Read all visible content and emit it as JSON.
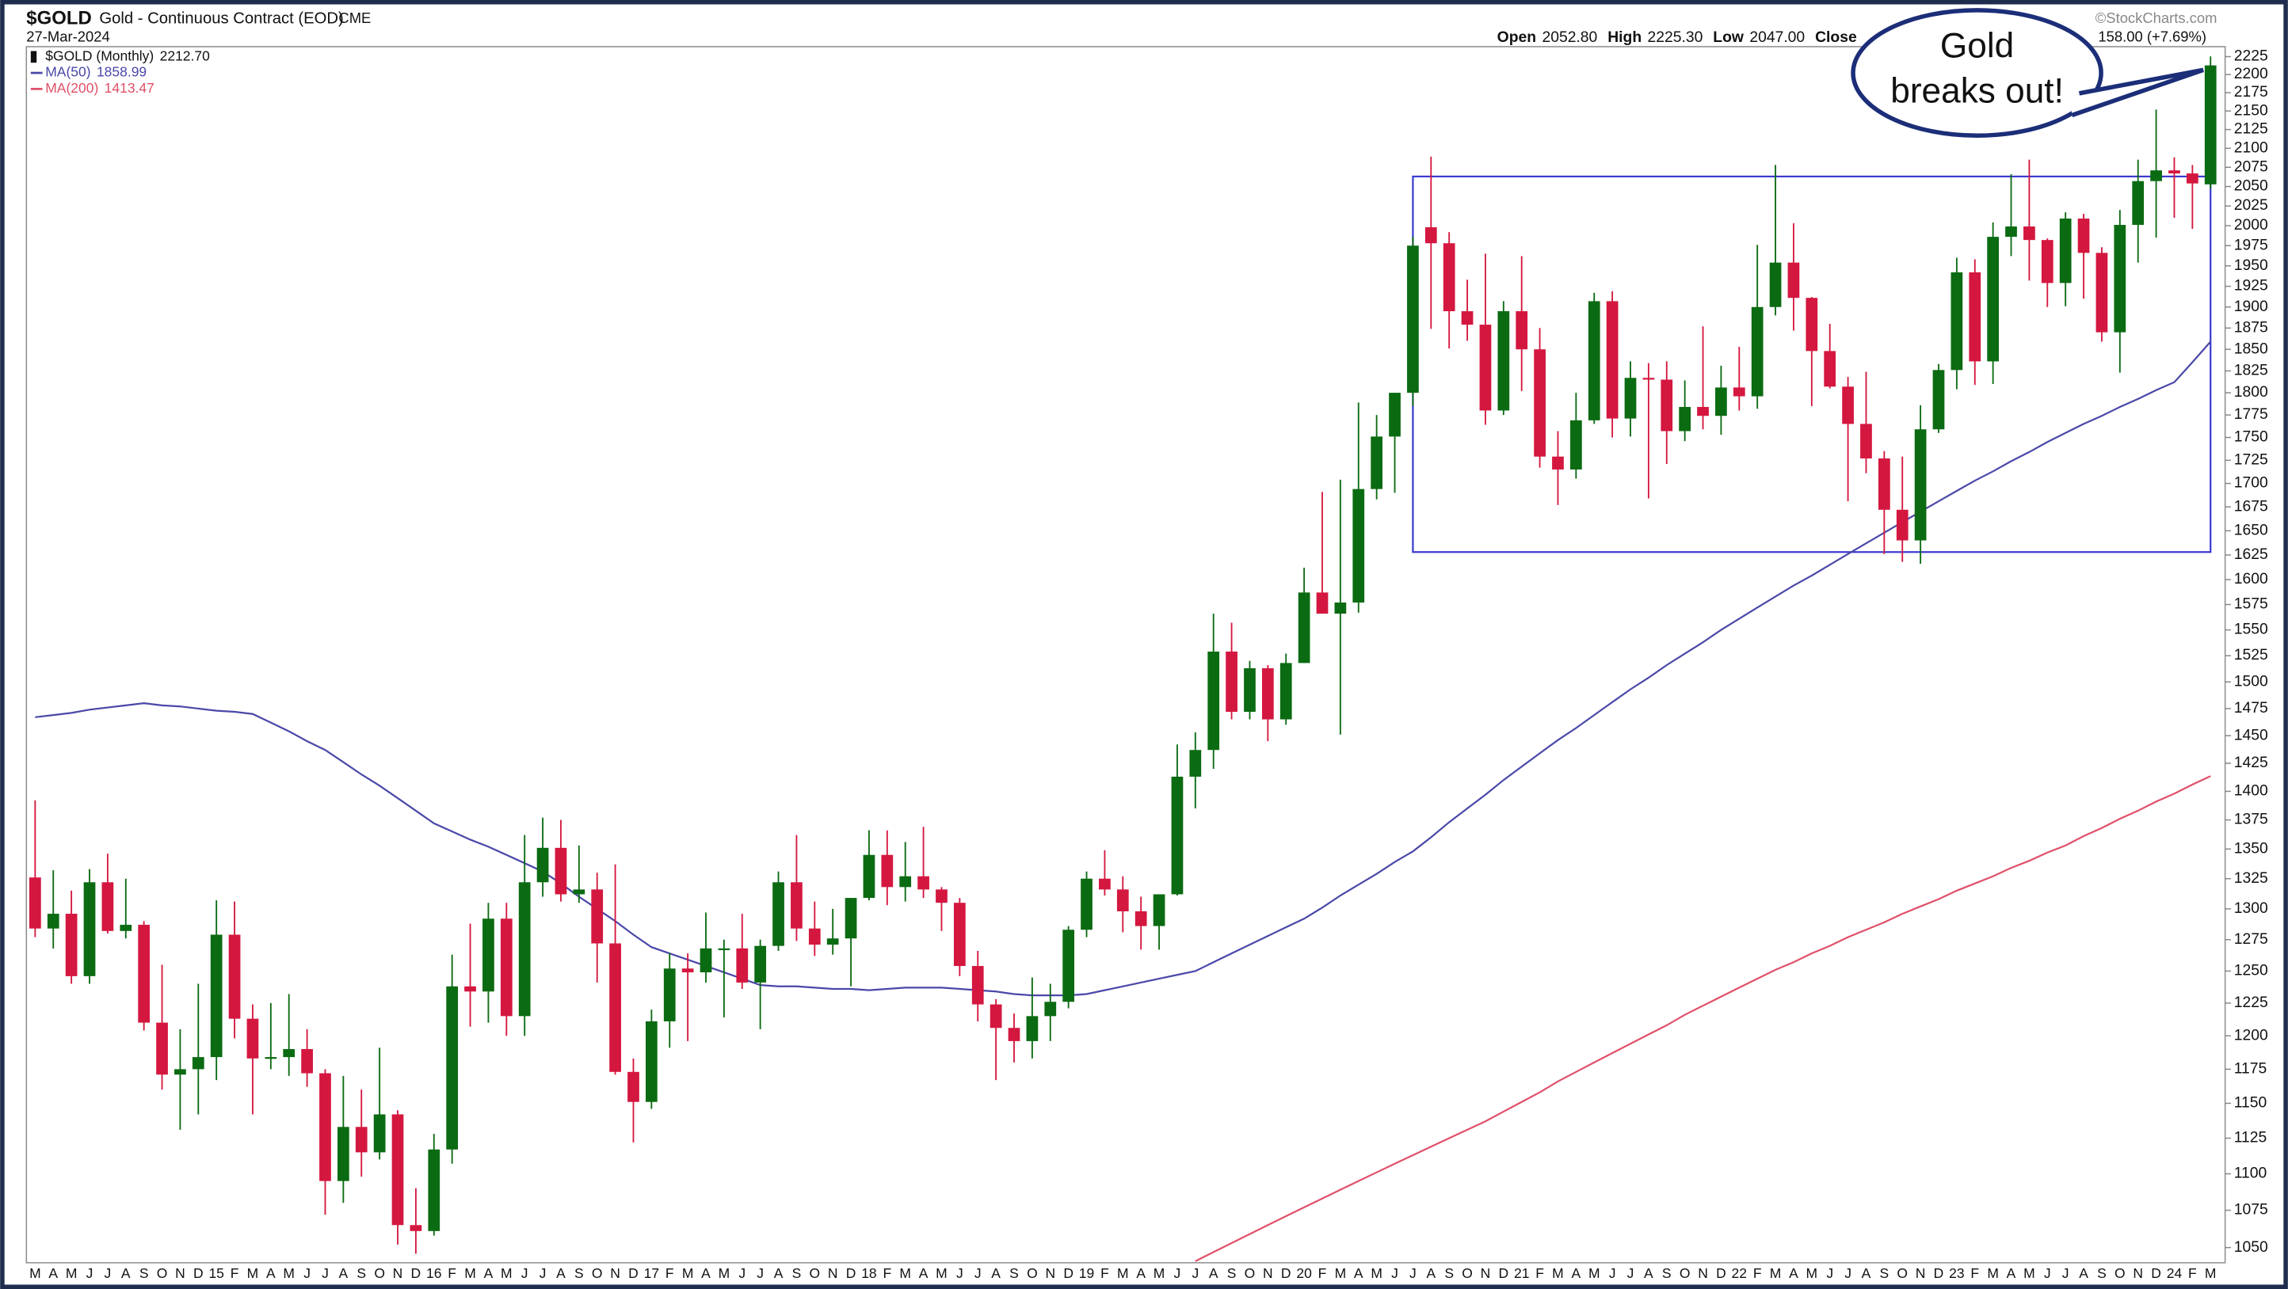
{
  "chart_data": {
    "type": "candlestick",
    "title": "$GOLD",
    "subtitle": "Gold - Continuous Contract (EOD)",
    "exchange": "CME",
    "date": "27-Mar-2024",
    "quote": [
      {
        "label": "Open",
        "value": "2052.80"
      },
      {
        "label": "High",
        "value": "2225.30"
      },
      {
        "label": "Low",
        "value": "2047.00"
      },
      {
        "label": "Close"
      }
    ],
    "change": "158.00 (+7.69%)",
    "source": "©StockCharts.com",
    "categories": [
      "M",
      "A",
      "M",
      "J",
      "J",
      "A",
      "S",
      "O",
      "N",
      "D",
      "15",
      "F",
      "M",
      "A",
      "M",
      "J",
      "J",
      "A",
      "S",
      "O",
      "N",
      "D",
      "16",
      "F",
      "M",
      "A",
      "M",
      "J",
      "J",
      "A",
      "S",
      "O",
      "N",
      "D",
      "17",
      "F",
      "M",
      "A",
      "M",
      "J",
      "J",
      "A",
      "S",
      "O",
      "N",
      "D",
      "18",
      "F",
      "M",
      "A",
      "M",
      "J",
      "J",
      "A",
      "S",
      "O",
      "N",
      "D",
      "19",
      "F",
      "M",
      "A",
      "M",
      "J",
      "J",
      "A",
      "S",
      "O",
      "N",
      "D",
      "20",
      "F",
      "M",
      "A",
      "M",
      "J",
      "J",
      "A",
      "S",
      "O",
      "N",
      "D",
      "21",
      "F",
      "M",
      "A",
      "M",
      "J",
      "J",
      "A",
      "S",
      "O",
      "N",
      "D",
      "22",
      "F",
      "M",
      "A",
      "M",
      "J",
      "J",
      "A",
      "S",
      "O",
      "N",
      "D",
      "23",
      "F",
      "M",
      "A",
      "M",
      "J",
      "J",
      "A",
      "S",
      "O",
      "N",
      "D",
      "24",
      "F",
      "M"
    ],
    "candles": {
      "name": "$GOLD (Monthly)",
      "last_label": "2212.70",
      "up_color": "#0b6b12",
      "down_color": "#d4173f",
      "open": [
        1326,
        1284,
        1296,
        1246,
        1322,
        1282,
        1287,
        1210,
        1171,
        1175,
        1184,
        1279,
        1213,
        1183,
        1184,
        1190,
        1172,
        1095,
        1133,
        1115,
        1142,
        1065,
        1061,
        1117,
        1238,
        1234,
        1292,
        1215,
        1322,
        1351,
        1312,
        1316,
        1272,
        1173,
        1151,
        1211,
        1252,
        1249,
        1268,
        1268,
        1241,
        1270,
        1322,
        1284,
        1271,
        1276,
        1309,
        1345,
        1318,
        1327,
        1316,
        1305,
        1254,
        1224,
        1206,
        1196,
        1215,
        1226,
        1283,
        1325,
        1316,
        1298,
        1286,
        1312,
        1413,
        1437,
        1529,
        1472,
        1513,
        1465,
        1518,
        1587,
        1566,
        1577,
        1694,
        1751,
        1800,
        1998,
        1978,
        1895,
        1879,
        1780,
        1895,
        1850,
        1729,
        1715,
        1769,
        1907,
        1771,
        1817,
        1815,
        1757,
        1784,
        1774,
        1806,
        1796,
        1900,
        1954,
        1911,
        1848,
        1807,
        1765,
        1727,
        1672,
        1640,
        1759,
        1826,
        1942,
        1836,
        1986,
        1999,
        1982,
        1929,
        2009,
        1966,
        1870,
        2001,
        2057,
        2071,
        2067,
        2052.8
      ],
      "high": [
        1392,
        1332,
        1315,
        1333,
        1346,
        1325,
        1290,
        1255,
        1205,
        1240,
        1307,
        1306,
        1224,
        1225,
        1232,
        1205,
        1175,
        1170,
        1160,
        1191,
        1145,
        1090,
        1128,
        1263,
        1288,
        1305,
        1305,
        1362,
        1377,
        1375,
        1353,
        1330,
        1337,
        1183,
        1220,
        1264,
        1264,
        1297,
        1275,
        1296,
        1275,
        1331,
        1362,
        1306,
        1300,
        1309,
        1366,
        1366,
        1356,
        1369,
        1318,
        1309,
        1266,
        1228,
        1217,
        1245,
        1240,
        1286,
        1331,
        1349,
        1327,
        1310,
        1312,
        1442,
        1453,
        1566,
        1557,
        1520,
        1516,
        1527,
        1612,
        1691,
        1704,
        1789,
        1775,
        1800,
        1986,
        2089,
        1992,
        1933,
        1965,
        1907,
        1962,
        1875,
        1757,
        1800,
        1917,
        1919,
        1836,
        1834,
        1836,
        1814,
        1877,
        1831,
        1853,
        1976,
        2078,
        2003,
        1912,
        1880,
        1818,
        1824,
        1735,
        1729,
        1786,
        1833,
        1960,
        1958,
        2004,
        2066,
        2085,
        1984,
        2017,
        2015,
        1973,
        2020,
        2085,
        2152,
        2088,
        2078,
        2225.3
      ],
      "low": [
        1277,
        1268,
        1240,
        1240,
        1280,
        1276,
        1204,
        1160,
        1131,
        1142,
        1167,
        1198,
        1142,
        1175,
        1170,
        1162,
        1072,
        1080,
        1098,
        1110,
        1052,
        1046,
        1058,
        1107,
        1207,
        1210,
        1200,
        1200,
        1310,
        1306,
        1305,
        1241,
        1171,
        1122,
        1146,
        1191,
        1196,
        1241,
        1214,
        1236,
        1205,
        1266,
        1274,
        1262,
        1263,
        1238,
        1307,
        1303,
        1306,
        1309,
        1282,
        1246,
        1211,
        1167,
        1180,
        1183,
        1196,
        1221,
        1277,
        1311,
        1281,
        1267,
        1267,
        1311,
        1385,
        1420,
        1465,
        1465,
        1445,
        1460,
        1518,
        1566,
        1451,
        1567,
        1683,
        1690,
        1785,
        1874,
        1851,
        1860,
        1764,
        1775,
        1802,
        1717,
        1677,
        1705,
        1765,
        1750,
        1751,
        1684,
        1721,
        1746,
        1759,
        1753,
        1780,
        1782,
        1890,
        1872,
        1785,
        1805,
        1681,
        1711,
        1626,
        1618,
        1616,
        1755,
        1804,
        1809,
        1810,
        1962,
        1932,
        1900,
        1901,
        1910,
        1859,
        1823,
        1954,
        1985,
        2010,
        1996,
        2047
      ],
      "close": [
        1284,
        1296,
        1246,
        1322,
        1282,
        1287,
        1210,
        1171,
        1175,
        1184,
        1279,
        1213,
        1183,
        1184,
        1190,
        1172,
        1095,
        1133,
        1115,
        1142,
        1065,
        1061,
        1117,
        1238,
        1234,
        1292,
        1215,
        1322,
        1351,
        1312,
        1316,
        1272,
        1173,
        1151,
        1211,
        1252,
        1249,
        1268,
        1268,
        1241,
        1270,
        1322,
        1284,
        1271,
        1276,
        1309,
        1345,
        1318,
        1327,
        1316,
        1305,
        1254,
        1224,
        1206,
        1196,
        1215,
        1226,
        1283,
        1325,
        1316,
        1298,
        1286,
        1312,
        1413,
        1437,
        1529,
        1472,
        1513,
        1465,
        1518,
        1587,
        1566,
        1577,
        1694,
        1751,
        1800,
        1975,
        1978,
        1895,
        1879,
        1780,
        1895,
        1850,
        1729,
        1715,
        1769,
        1907,
        1771,
        1817,
        1815,
        1757,
        1784,
        1774,
        1806,
        1796,
        1900,
        1954,
        1911,
        1848,
        1807,
        1765,
        1727,
        1672,
        1640,
        1759,
        1826,
        1942,
        1836,
        1986,
        1999,
        1982,
        1929,
        2009,
        1966,
        1870,
        2001,
        2057,
        2071,
        2067,
        2054,
        2212.7
      ]
    },
    "series": [
      {
        "name": "MA(50)",
        "last_label": "1858.99",
        "color": "#4a48a8",
        "values": [
          1467,
          1469,
          1471,
          1474,
          1476,
          1478,
          1480,
          1478,
          1477,
          1475,
          1473,
          1472,
          1470,
          1462,
          1454,
          1445,
          1437,
          1426,
          1415,
          1405,
          1394,
          1383,
          1372,
          1365,
          1358,
          1352,
          1345,
          1338,
          1331,
          1321,
          1310,
          1300,
          1290,
          1279,
          1269,
          1264,
          1259,
          1254,
          1249,
          1244,
          1239,
          1238,
          1238,
          1237,
          1236,
          1236,
          1235,
          1236,
          1237,
          1237,
          1237,
          1236,
          1235,
          1234,
          1232,
          1231,
          1231,
          1231,
          1232,
          1235,
          1238,
          1241,
          1244,
          1247,
          1250,
          1257,
          1264,
          1271,
          1278,
          1285,
          1292,
          1301,
          1311,
          1320,
          1329,
          1339,
          1348,
          1360,
          1373,
          1385,
          1397,
          1410,
          1422,
          1434,
          1446,
          1457,
          1469,
          1481,
          1493,
          1504,
          1516,
          1527,
          1538,
          1550,
          1561,
          1572,
          1583,
          1594,
          1604,
          1615,
          1626,
          1637,
          1648,
          1659,
          1670,
          1681,
          1692,
          1703,
          1713,
          1724,
          1734,
          1745,
          1755,
          1765,
          1774,
          1784,
          1793,
          1803,
          1812,
          1835,
          1858.99
        ]
      },
      {
        "name": "MA(200)",
        "last_label": "1413.47",
        "color": "#e0506a",
        "values": [
          null,
          null,
          null,
          null,
          null,
          null,
          null,
          null,
          null,
          null,
          null,
          null,
          null,
          null,
          null,
          null,
          null,
          null,
          null,
          null,
          null,
          null,
          null,
          null,
          null,
          null,
          null,
          null,
          null,
          null,
          null,
          null,
          null,
          null,
          null,
          null,
          null,
          null,
          null,
          null,
          null,
          null,
          null,
          null,
          null,
          null,
          null,
          null,
          null,
          null,
          null,
          null,
          null,
          null,
          null,
          null,
          null,
          null,
          null,
          null,
          null,
          null,
          null,
          null,
          1041,
          1047,
          1053,
          1059,
          1065,
          1071,
          1077,
          1083,
          1089,
          1095,
          1101,
          1107,
          1113,
          1119,
          1125,
          1131,
          1137,
          1144,
          1151,
          1158,
          1166,
          1173,
          1180,
          1187,
          1194,
          1201,
          1208,
          1216,
          1223,
          1230,
          1237,
          1244,
          1251,
          1257,
          1264,
          1270,
          1277,
          1283,
          1289,
          1296,
          1302,
          1308,
          1315,
          1321,
          1327,
          1334,
          1340,
          1347,
          1353,
          1361,
          1368,
          1376,
          1383,
          1391,
          1398,
          1406,
          1413.47
        ]
      }
    ],
    "range_box": {
      "xlim": [
        76,
        120
      ],
      "ylim": [
        1628,
        2063
      ],
      "color": "#3a3ad0"
    },
    "annotation": [
      "Gold",
      "breaks out!"
    ],
    "ylim": [
      1040,
      2239
    ],
    "log_scale": true,
    "yticks": [
      1050,
      1075,
      1100,
      1125,
      1150,
      1175,
      1200,
      1225,
      1250,
      1275,
      1300,
      1325,
      1350,
      1375,
      1400,
      1425,
      1450,
      1475,
      1500,
      1525,
      1550,
      1575,
      1600,
      1625,
      1650,
      1675,
      1700,
      1725,
      1750,
      1775,
      1800,
      1825,
      1850,
      1875,
      1900,
      1925,
      1950,
      1975,
      2000,
      2025,
      2050,
      2075,
      2100,
      2125,
      2150,
      2175,
      2200,
      2225
    ],
    "grid": false
  }
}
